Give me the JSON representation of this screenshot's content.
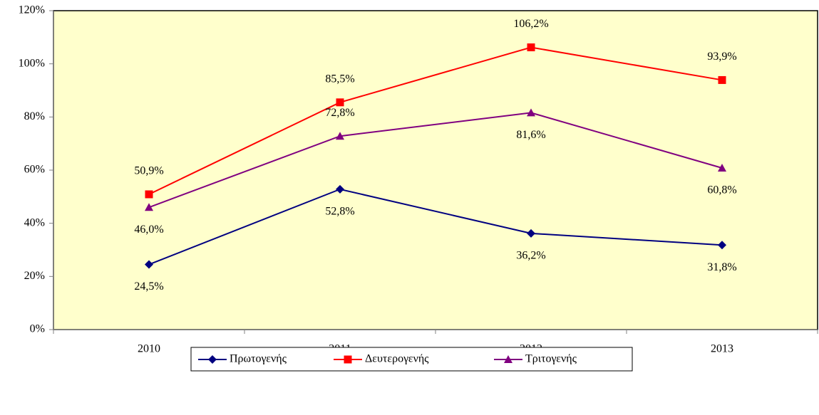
{
  "chart_data": {
    "type": "line",
    "categories": [
      "2010",
      "2011",
      "2012",
      "2013"
    ],
    "series": [
      {
        "name": "Πρωτογενής",
        "color": "#000080",
        "marker": "diamond",
        "values": [
          24.5,
          52.8,
          36.2,
          31.8
        ],
        "value_labels": [
          "24,5%",
          "52,8%",
          "36,2%",
          "31,8%"
        ]
      },
      {
        "name": "Δευτερογενής",
        "color": "#ff0000",
        "marker": "square",
        "values": [
          50.9,
          85.5,
          106.2,
          93.9
        ],
        "value_labels": [
          "50,9%",
          "85,5%",
          "106,2%",
          "93,9%"
        ]
      },
      {
        "name": "Τριτογενής",
        "color": "#800080",
        "marker": "triangle",
        "values": [
          46.0,
          72.8,
          81.6,
          60.8
        ],
        "value_labels": [
          "46,0%",
          "72,8%",
          "81,6%",
          "60,8%"
        ]
      }
    ],
    "ylim": [
      0,
      120
    ],
    "yticks": [
      {
        "value": 0,
        "label": "0%"
      },
      {
        "value": 20,
        "label": "20%"
      },
      {
        "value": 40,
        "label": "40%"
      },
      {
        "value": 60,
        "label": "60%"
      },
      {
        "value": 80,
        "label": "80%"
      },
      {
        "value": 100,
        "label": "100%"
      },
      {
        "value": 120,
        "label": "120%"
      }
    ],
    "plot_background": "#ffffcc",
    "legend": "bottom"
  }
}
